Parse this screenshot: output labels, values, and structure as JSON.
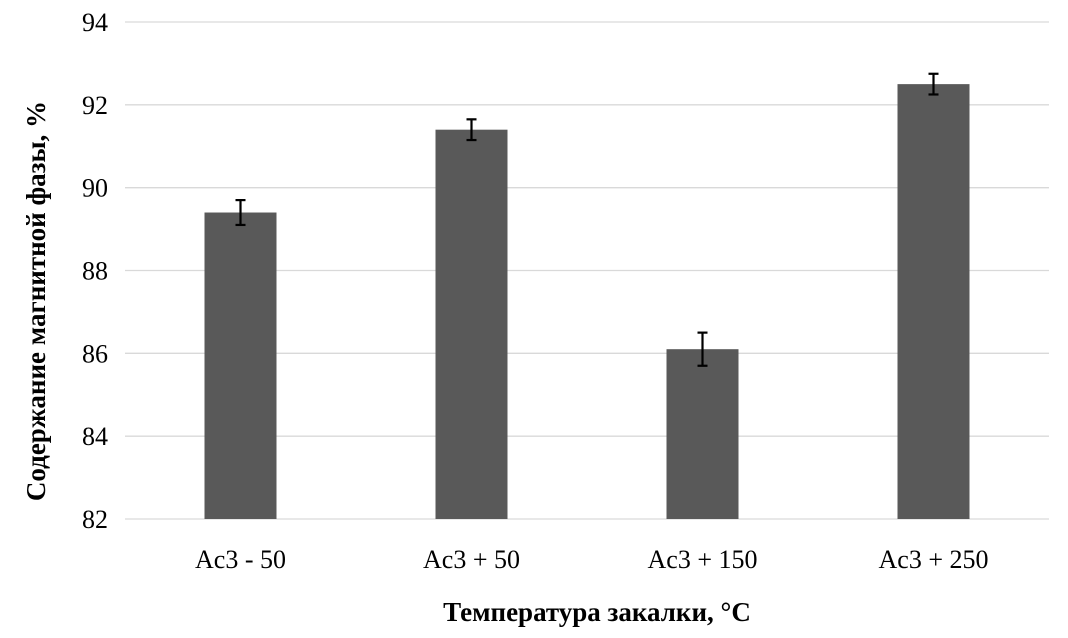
{
  "chart_data": {
    "type": "bar",
    "title": "",
    "xlabel": "Температура закалки, °C",
    "ylabel": "Содержание магнитной фазы,  %",
    "categories": [
      "Ac3 - 50",
      "Ac3 + 50",
      "Ac3 + 150",
      "Ac3 + 250"
    ],
    "values": [
      89.4,
      91.4,
      86.1,
      92.5
    ],
    "errors": [
      0.3,
      0.25,
      0.4,
      0.25
    ],
    "ylim": [
      82,
      94
    ],
    "yticks": [
      82,
      84,
      86,
      88,
      90,
      92,
      94
    ],
    "grid": true,
    "legend": "none",
    "bar_color": "#595959",
    "grid_color": "#d9d9d9",
    "error_bar_color": "#000000"
  }
}
